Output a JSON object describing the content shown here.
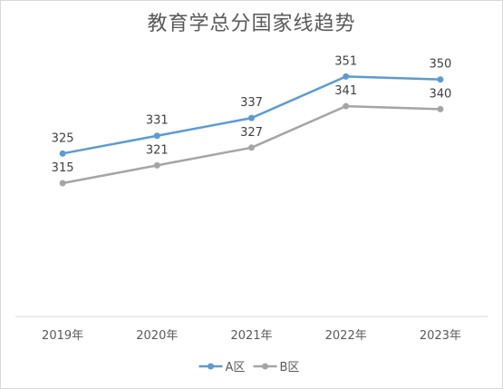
{
  "chart_data": {
    "type": "line",
    "title": "教育学总分国家线趋势",
    "categories": [
      "2019年",
      "2020年",
      "2021年",
      "2022年",
      "2023年"
    ],
    "series": [
      {
        "name": "A区",
        "color": "#5b9bd5",
        "values": [
          325,
          331,
          337,
          351,
          350
        ]
      },
      {
        "name": "B区",
        "color": "#a5a5a5",
        "values": [
          315,
          321,
          327,
          341,
          340
        ]
      }
    ],
    "xlabel": "",
    "ylabel": "",
    "ylim": [
      270,
      360
    ],
    "grid": false,
    "legend_position": "bottom",
    "data_labels": true
  }
}
